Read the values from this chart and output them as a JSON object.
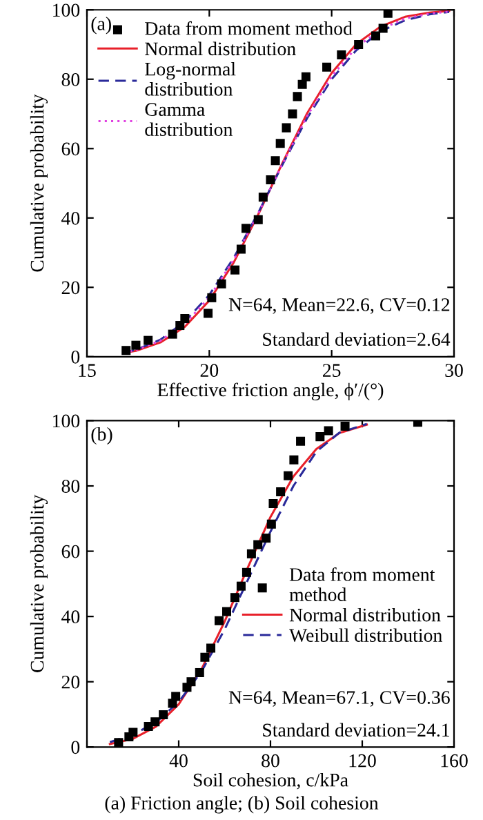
{
  "chart_data": [
    {
      "type": "scatter",
      "xlabel": "Effective friction angle, ϕ′/(°)",
      "ylabel": "Cumulative probability",
      "xlim": [
        15,
        30
      ],
      "xticks": [
        15,
        20,
        25,
        30
      ],
      "ylim": [
        0,
        100
      ],
      "yticks": [
        0,
        20,
        40,
        60,
        80,
        100
      ],
      "legend": "top left",
      "grid": false,
      "annotations": [
        "(a)",
        "N=64, Mean=22.6, CV=0.12",
        "Standard deviation=2.64"
      ],
      "series": [
        {
          "name": "Data from moment method",
          "marker": "square",
          "color": "#000000",
          "x": [
            16.6,
            17.0,
            17.5,
            18.5,
            18.8,
            19.0,
            19.95,
            20.1,
            20.5,
            21.05,
            21.3,
            21.5,
            22.0,
            22.2,
            22.5,
            22.7,
            22.9,
            23.15,
            23.4,
            23.6,
            23.8,
            23.95,
            24.8,
            25.4,
            26.1,
            26.8,
            27.1,
            27.3
          ],
          "values": [
            1.8,
            3.3,
            4.7,
            6.5,
            9,
            11,
            12.5,
            17,
            21,
            25,
            31,
            37,
            39.5,
            46,
            51,
            56.5,
            61.5,
            66,
            70,
            75,
            78.5,
            80.7,
            83.5,
            87,
            90,
            92.5,
            94.7,
            99
          ]
        },
        {
          "name": "Normal distribution",
          "type": "line",
          "line_style": "solid",
          "color": "#e8202a",
          "x": [
            16.5,
            17,
            18,
            19,
            20,
            21,
            22,
            23,
            24,
            25,
            26,
            27,
            28,
            29,
            29.8
          ],
          "values": [
            1.1,
            1.7,
            4.1,
            8.6,
            16.2,
            27.2,
            41.0,
            56.0,
            70.2,
            81.8,
            90.1,
            95.2,
            98.0,
            99.2,
            99.7
          ]
        },
        {
          "name": "Log-normal\ndistribution",
          "type": "line",
          "line_style": "dashed",
          "color": "#2a2a9a",
          "x": [
            16.5,
            17,
            18,
            19,
            20,
            21,
            22,
            23,
            24,
            25,
            26,
            27,
            28,
            29,
            29.8
          ],
          "values": [
            1.2,
            2.0,
            4.9,
            10.1,
            17.8,
            28.5,
            41.5,
            55.5,
            68.8,
            80.0,
            88.3,
            93.8,
            97.0,
            98.7,
            99.4
          ]
        },
        {
          "name": "Gamma\ndistribution",
          "type": "line",
          "line_style": "dotted",
          "color": "#e040e0",
          "x": [
            16.5,
            17,
            18,
            19,
            20,
            21,
            22,
            23,
            24,
            25,
            26,
            27,
            28,
            29,
            29.8
          ],
          "values": [
            1.1,
            1.9,
            4.6,
            9.5,
            17.1,
            28.0,
            41.3,
            55.7,
            69.4,
            80.8,
            89.1,
            94.4,
            97.5,
            98.9,
            99.5
          ]
        }
      ]
    },
    {
      "type": "scatter",
      "xlabel": "Soil cohesion, c/kPa",
      "ylabel": "Cumulative probability",
      "xlim": [
        0,
        160
      ],
      "xticks": [
        {
          "value": 0,
          "label": null
        },
        40,
        80,
        120,
        160
      ],
      "ylim": [
        0,
        100
      ],
      "yticks": [
        0,
        20,
        40,
        60,
        80,
        100
      ],
      "legend": "right",
      "grid": false,
      "annotations": [
        "(b)",
        "N=64, Mean=67.1, CV=0.36",
        "Standard deviation=24.1",
        "(a) Friction angle; (b) Soil cohesion"
      ],
      "series": [
        {
          "name": "Data from moment\nmethod",
          "marker": "square",
          "color": "#000000",
          "x": [
            13.8,
            18.3,
            20.1,
            26.8,
            29.7,
            33.3,
            37.3,
            38.7,
            43.6,
            45.4,
            49.1,
            51.4,
            54.0,
            57.6,
            60.9,
            64.5,
            67.2,
            69.6,
            71.7,
            74.5,
            78.1,
            80.4,
            81.2,
            84.4,
            87.7,
            90.2,
            93.1,
            101.6,
            105.3,
            112.5,
            144.2
          ],
          "values": [
            1.4,
            3.1,
            4.5,
            6.3,
            7.7,
            9.9,
            13.4,
            15.5,
            18.3,
            20,
            22.8,
            27.5,
            30.3,
            38.7,
            41.5,
            45.8,
            49.3,
            53.5,
            59.2,
            62,
            64,
            68.3,
            74.6,
            78.2,
            83.1,
            88,
            93.7,
            95.1,
            96.9,
            98.3,
            99.5
          ]
        },
        {
          "name": "Normal distribution",
          "type": "line",
          "line_style": "solid",
          "color": "#e8202a",
          "x": [
            10,
            20,
            30,
            40,
            50,
            60,
            70,
            80,
            90,
            100,
            110,
            122
          ],
          "values": [
            0.9,
            2.5,
            6.2,
            13.1,
            23.9,
            38.4,
            54.8,
            70.5,
            82.9,
            91.3,
            96.2,
            98.8
          ]
        },
        {
          "name": "Weibull distribution",
          "type": "line",
          "line_style": "dashed",
          "color": "#2a2a9a",
          "x": [
            10,
            20,
            30,
            40,
            50,
            60,
            70,
            80,
            90,
            100,
            110,
            122
          ],
          "values": [
            1.5,
            3.8,
            7.5,
            13.8,
            23.2,
            36,
            51,
            66,
            80,
            90.5,
            96.3,
            99
          ]
        }
      ]
    }
  ]
}
